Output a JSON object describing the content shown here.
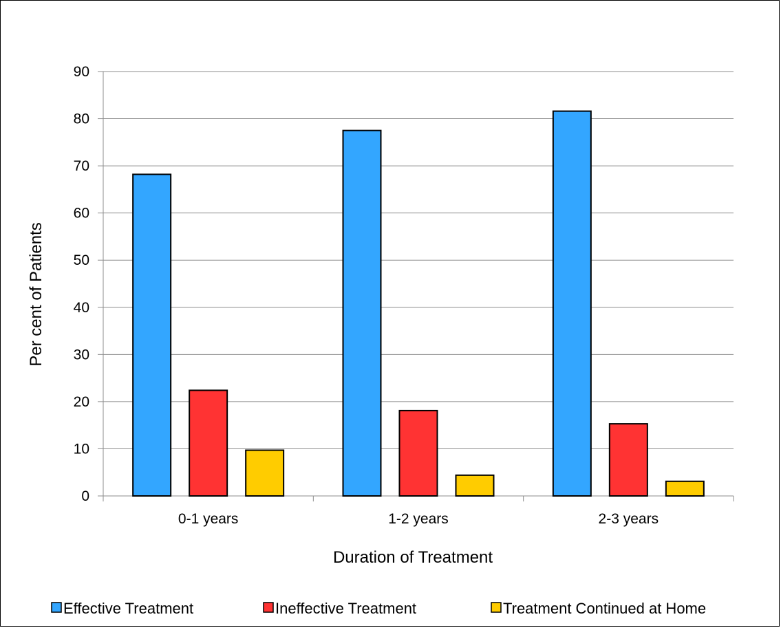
{
  "chart_data": {
    "type": "bar",
    "title": "",
    "xlabel": "Duration of Treatment",
    "ylabel": "Per cent of Patients",
    "categories": [
      "0-1 years",
      "1-2 years",
      "2-3 years"
    ],
    "ylim": [
      0,
      90
    ],
    "yticks": [
      "0",
      "10",
      "20",
      "30",
      "40",
      "50",
      "60",
      "70",
      "80",
      "90"
    ],
    "grid": true,
    "legend_position": "bottom",
    "series": [
      {
        "name": "Effective Treatment",
        "color": "#33a6ff",
        "values": [
          68.2,
          77.5,
          81.6
        ]
      },
      {
        "name": "Ineffective Treatment",
        "color": "#ff3333",
        "values": [
          22.4,
          18.1,
          15.3
        ]
      },
      {
        "name": "Treatment Continued at Home",
        "color": "#ffcc00",
        "values": [
          9.7,
          4.4,
          3.1
        ]
      }
    ]
  }
}
